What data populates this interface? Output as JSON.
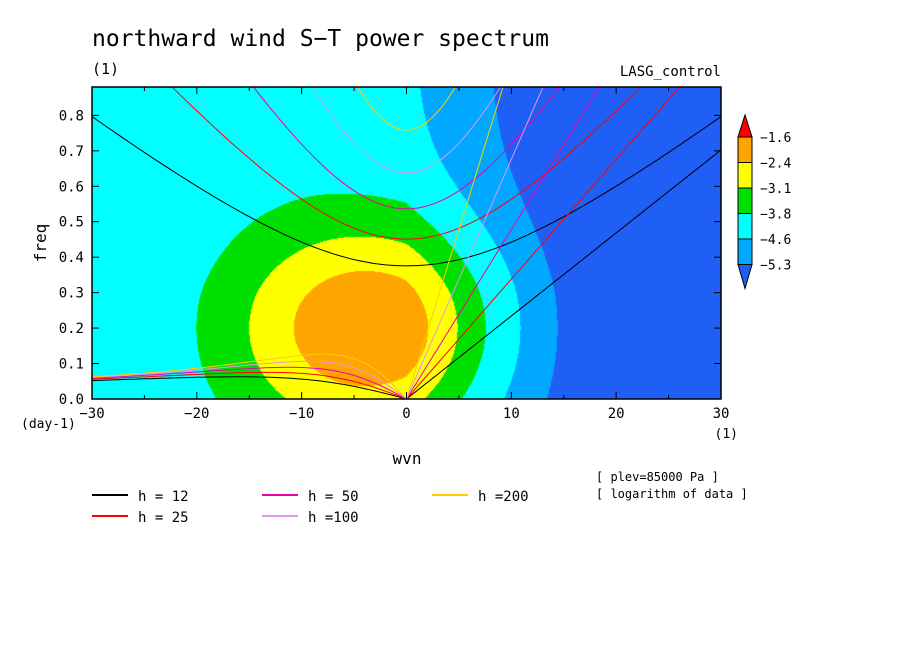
{
  "chart_data": {
    "type": "heatmap",
    "title": "northward wind S−T power spectrum",
    "subtitle_left": "(1)",
    "subtitle_right": "LASG_control",
    "xlabel": "wvn",
    "ylabel": "freq",
    "x_unit": "(1)",
    "y_unit": "(day-1)",
    "xlim": [
      -30,
      30
    ],
    "ylim": [
      0,
      0.88
    ],
    "x_ticks": [
      "−30",
      "−20",
      "−10",
      "0",
      "10",
      "20",
      "30"
    ],
    "x_tick_values": [
      -30,
      -20,
      -10,
      0,
      10,
      20,
      30
    ],
    "y_ticks": [
      "0.0",
      "0.1",
      "0.2",
      "0.3",
      "0.4",
      "0.5",
      "0.6",
      "0.7",
      "0.8"
    ],
    "y_tick_values": [
      0,
      0.1,
      0.2,
      0.3,
      0.4,
      0.5,
      0.6,
      0.7,
      0.8
    ],
    "colorbar": {
      "labels": [
        "−1.6",
        "−2.4",
        "−3.1",
        "−3.8",
        "−4.6",
        "−5.3"
      ],
      "levels": [
        -1.6,
        -2.4,
        -3.1,
        -3.8,
        -4.6,
        -5.3
      ],
      "colors": [
        "#1f5ff5",
        "#00a8ff",
        "#00ffff",
        "#00e000",
        "#ffff00",
        "#ffa500",
        "#ff0000"
      ],
      "bands_top_to_bottom": [
        "#ff0000",
        "#ffa500",
        "#ffff00",
        "#00e000",
        "#00ffff",
        "#00a8ff",
        "#1f5ff5"
      ]
    },
    "dispersion_curves": [
      {
        "label": "h = 12",
        "h": 12,
        "color": "#000000"
      },
      {
        "label": "h = 25",
        "h": 25,
        "color": "#ff0000"
      },
      {
        "label": "h = 50",
        "h": 50,
        "color": "#ee00aa"
      },
      {
        "label": "h =100",
        "h": 100,
        "color": "#dd99ee"
      },
      {
        "label": "h =200",
        "h": 200,
        "color": "#ffcc00"
      }
    ],
    "annotations": [
      "[ plev=85000 Pa ]",
      "[ logarithm of data ]"
    ]
  }
}
